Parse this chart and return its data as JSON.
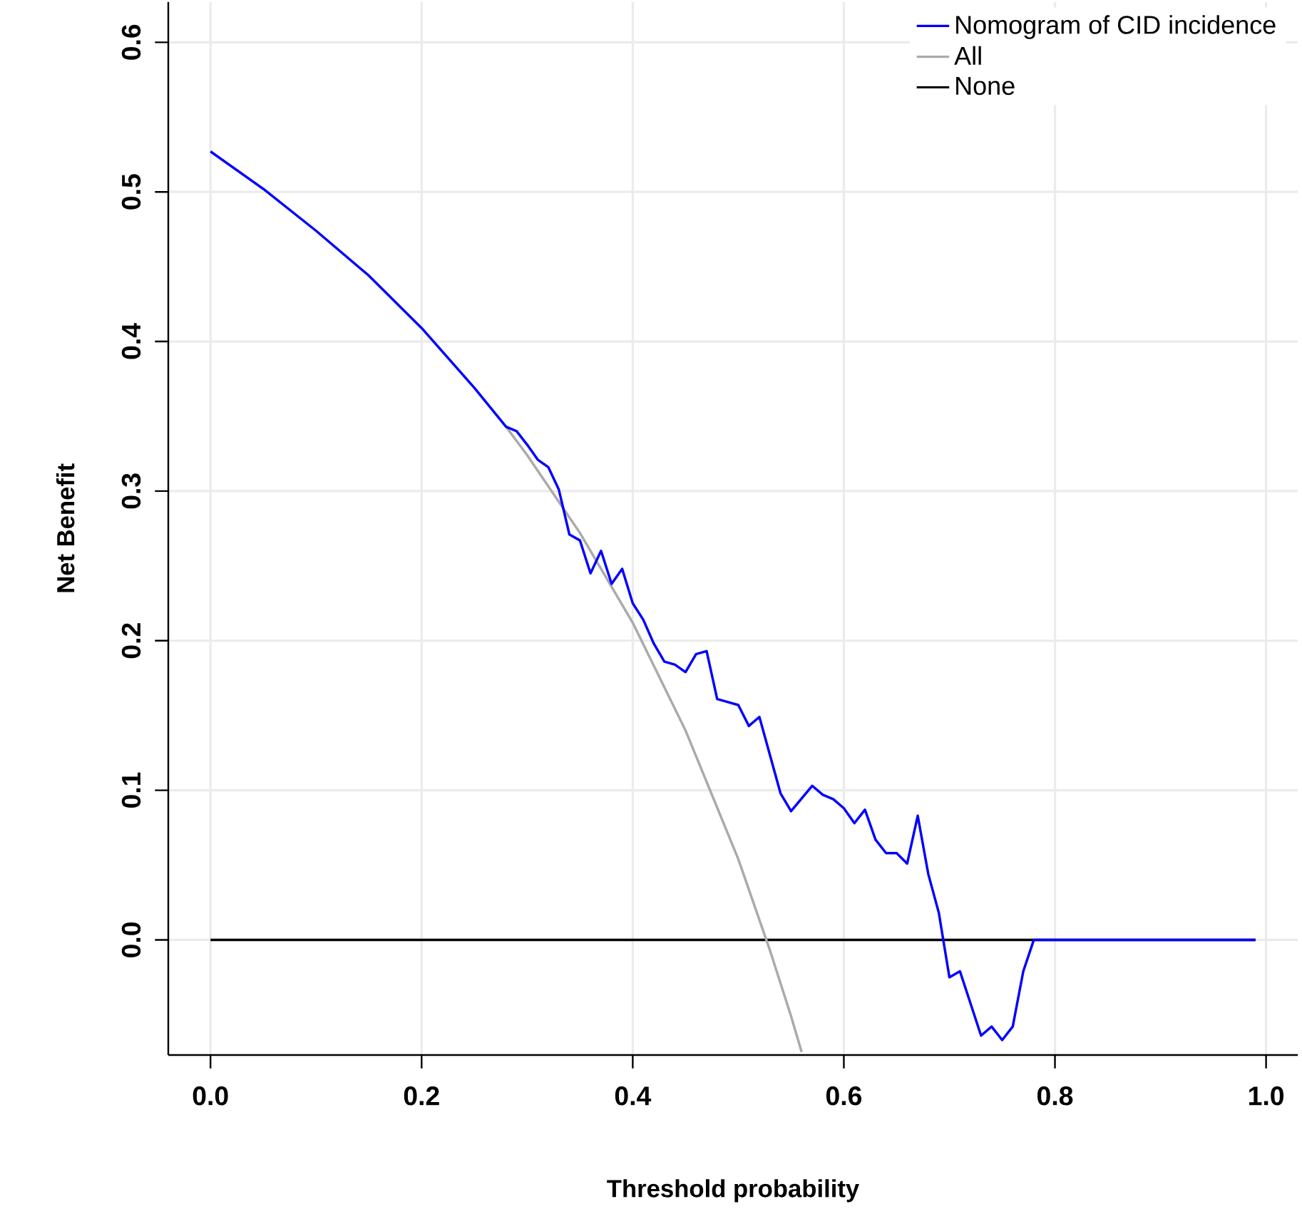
{
  "chart_data": {
    "type": "line",
    "xlabel": "Threshold probability",
    "ylabel": "Net Benefit",
    "xlim": [
      -0.04,
      1.03
    ],
    "ylim": [
      -0.077,
      0.627
    ],
    "xticks": [
      {
        "value": 0,
        "label": "0.0"
      },
      0.2,
      0.4,
      0.6,
      0.8,
      {
        "value": 1,
        "label": "1.0"
      }
    ],
    "yticks": [
      {
        "value": 0,
        "label": "0.0"
      },
      0.1,
      0.2,
      0.3,
      0.4,
      0.5,
      0.6
    ],
    "grid": true,
    "legend": "top right",
    "series": [
      {
        "name": "Nomogram of CID incidence",
        "color": "#0000ff",
        "x": [
          0,
          0.05,
          0.1,
          0.15,
          0.2,
          0.25,
          0.28,
          0.29,
          0.3,
          0.31,
          0.32,
          0.33,
          0.34,
          0.35,
          0.36,
          0.37,
          0.38,
          0.39,
          0.4,
          0.41,
          0.42,
          0.43,
          0.44,
          0.45,
          0.46,
          0.47,
          0.48,
          0.5,
          0.51,
          0.52,
          0.54,
          0.55,
          0.57,
          0.58,
          0.59,
          0.6,
          0.61,
          0.62,
          0.63,
          0.64,
          0.65,
          0.66,
          0.67,
          0.68,
          0.69,
          0.7,
          0.71,
          0.73,
          0.74,
          0.75,
          0.76,
          0.77,
          0.78,
          0.99
        ],
        "values": [
          0.527,
          0.502,
          0.474,
          0.444,
          0.409,
          0.369,
          0.343,
          0.34,
          0.331,
          0.321,
          0.316,
          0.301,
          0.271,
          0.267,
          0.245,
          0.26,
          0.238,
          0.248,
          0.225,
          0.214,
          0.198,
          0.186,
          0.184,
          0.179,
          0.191,
          0.193,
          0.161,
          0.157,
          0.143,
          0.149,
          0.098,
          0.086,
          0.103,
          0.097,
          0.094,
          0.088,
          0.078,
          0.087,
          0.067,
          0.058,
          0.058,
          0.051,
          0.083,
          0.044,
          0.018,
          -0.025,
          -0.021,
          -0.064,
          -0.058,
          -0.067,
          -0.058,
          -0.021,
          0,
          0
        ]
      },
      {
        "name": "All",
        "color": "#aaaaaa",
        "x": [
          0.28,
          0.3,
          0.35,
          0.4,
          0.45,
          0.5,
          0.53,
          0.55,
          0.56
        ],
        "values": [
          0.343,
          0.324,
          0.272,
          0.212,
          0.14,
          0.054,
          -0.007,
          -0.051,
          -0.075
        ]
      },
      {
        "name": "None",
        "color": "#000000",
        "x": [
          0,
          0.99
        ],
        "values": [
          0,
          0
        ]
      }
    ]
  }
}
